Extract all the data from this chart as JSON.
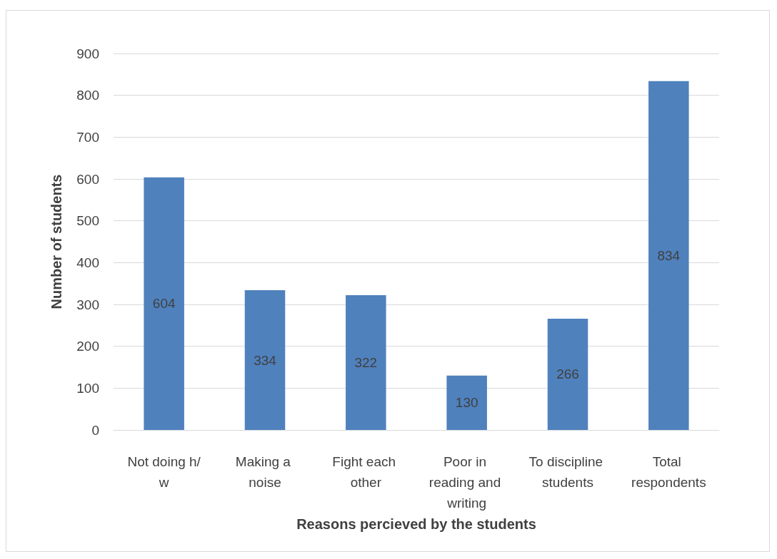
{
  "chart_data": {
    "type": "bar",
    "xlabel": "Reasons percieved by the students",
    "ylabel": "Number of students",
    "categories": [
      "Not doing h/w",
      "Making a noise",
      "Fight each other",
      "Poor in reading and writing",
      "To discipline students",
      "Total respondents"
    ],
    "values": [
      604,
      334,
      322,
      130,
      266,
      834
    ],
    "color": "#4f81bd",
    "ylim": [
      0,
      900
    ],
    "yticks": [
      0,
      100,
      200,
      300,
      400,
      500,
      600,
      700,
      800,
      900
    ],
    "grid": "y",
    "data_labels": true
  }
}
